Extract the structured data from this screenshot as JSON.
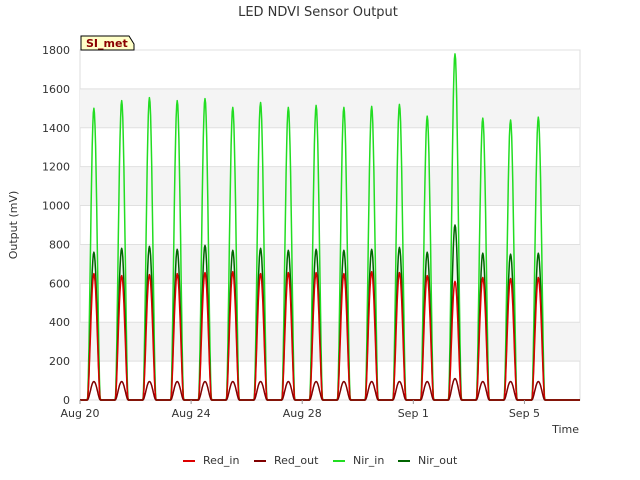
{
  "chart_data": {
    "type": "line",
    "title": "LED NDVI Sensor Output",
    "xlabel": "Time",
    "ylabel": "Output (mV)",
    "site_label": "SI_met",
    "xlim": [
      "2024-08-20",
      "2024-09-07"
    ],
    "ylim": [
      0,
      1800
    ],
    "yticks": [
      0,
      200,
      400,
      600,
      800,
      1000,
      1200,
      1400,
      1600,
      1800
    ],
    "xticks": [
      {
        "date": "2024-08-20",
        "label": "Aug 20"
      },
      {
        "date": "2024-08-24",
        "label": "Aug 24"
      },
      {
        "date": "2024-08-28",
        "label": "Aug 28"
      },
      {
        "date": "2024-09-01",
        "label": "Sep 1"
      },
      {
        "date": "2024-09-05",
        "label": "Sep 5"
      }
    ],
    "grid": true,
    "legend_position": "bottom",
    "peak_dates": [
      "2024-08-20",
      "2024-08-21",
      "2024-08-22",
      "2024-08-23",
      "2024-08-24",
      "2024-08-25",
      "2024-08-26",
      "2024-08-27",
      "2024-08-28",
      "2024-08-29",
      "2024-08-30",
      "2024-08-31",
      "2024-09-01",
      "2024-09-02",
      "2024-09-03",
      "2024-09-04",
      "2024-09-05",
      "2024-09-06"
    ],
    "series": [
      {
        "name": "Red_in",
        "color": "#dd0000",
        "daily_peaks": [
          650,
          640,
          645,
          650,
          655,
          660,
          650,
          655,
          655,
          650,
          660,
          655,
          640,
          610,
          630,
          625,
          630,
          0
        ]
      },
      {
        "name": "Red_out",
        "color": "#800000",
        "daily_peaks": [
          95,
          95,
          95,
          95,
          95,
          95,
          95,
          95,
          95,
          95,
          95,
          95,
          95,
          110,
          95,
          95,
          95,
          0
        ]
      },
      {
        "name": "Nir_in",
        "color": "#22dd22",
        "daily_peaks": [
          1500,
          1540,
          1555,
          1540,
          1550,
          1505,
          1530,
          1505,
          1515,
          1505,
          1510,
          1520,
          1460,
          1780,
          1450,
          1440,
          1455,
          0
        ]
      },
      {
        "name": "Nir_out",
        "color": "#006400",
        "daily_peaks": [
          760,
          780,
          790,
          775,
          795,
          770,
          780,
          770,
          775,
          770,
          775,
          785,
          760,
          900,
          755,
          750,
          755,
          0
        ]
      }
    ]
  }
}
